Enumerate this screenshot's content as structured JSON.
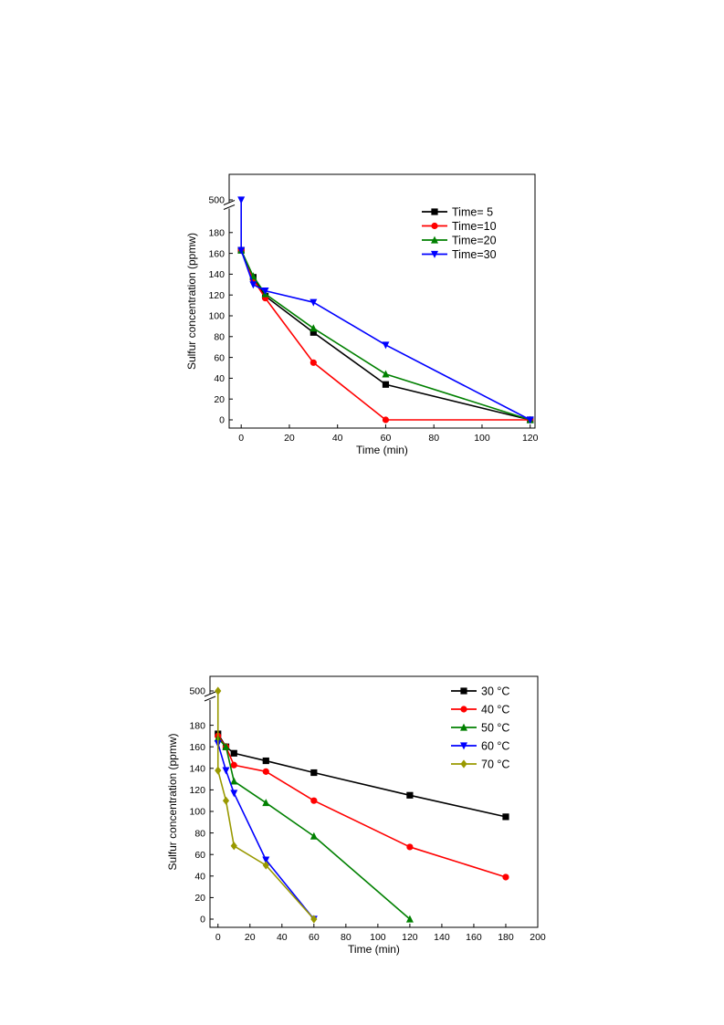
{
  "chart_data": [
    {
      "type": "line",
      "xlabel": "Time (min)",
      "ylabel": "Sulfur concentration (ppmw)",
      "xlim": [
        -5,
        122
      ],
      "ylim": [
        0,
        200
      ],
      "y_axis_break": true,
      "y_break_top_value": 500,
      "xticks": [
        "0",
        "20",
        "40",
        "60",
        "80",
        "100",
        "120"
      ],
      "yticks": [
        "0",
        "20",
        "40",
        "60",
        "80",
        "100",
        "120",
        "140",
        "160",
        "180"
      ],
      "ytick_top": "500",
      "legend_position": "top-right",
      "series": [
        {
          "name": "Time= 5",
          "color": "#000000",
          "marker": "square",
          "points": [
            [
              0,
              163
            ],
            [
              5,
              137
            ],
            [
              10,
              119
            ],
            [
              30,
              84
            ],
            [
              60,
              34
            ],
            [
              120,
              0
            ]
          ]
        },
        {
          "name": "Time=10",
          "color": "#ff0000",
          "marker": "circle",
          "points": [
            [
              0,
              163
            ],
            [
              5,
              135
            ],
            [
              10,
              117
            ],
            [
              30,
              55
            ],
            [
              60,
              0
            ],
            [
              120,
              0
            ]
          ]
        },
        {
          "name": "Time=20",
          "color": "#008000",
          "marker": "triangle-up",
          "points": [
            [
              0,
              163
            ],
            [
              5,
              138
            ],
            [
              10,
              121
            ],
            [
              30,
              88
            ],
            [
              60,
              44
            ],
            [
              120,
              0
            ]
          ]
        },
        {
          "name": "Time=30",
          "color": "#0000ff",
          "marker": "triangle-down",
          "points": [
            [
              0,
              500
            ],
            [
              0,
              163
            ],
            [
              5,
              130
            ],
            [
              10,
              124
            ],
            [
              30,
              113
            ],
            [
              60,
              72
            ],
            [
              120,
              0
            ]
          ]
        }
      ]
    },
    {
      "type": "line",
      "xlabel": "Time (min)",
      "ylabel": "Sulfur concentration (ppmw)",
      "xlim": [
        -5,
        200
      ],
      "ylim": [
        0,
        200
      ],
      "y_axis_break": true,
      "y_break_top_value": 500,
      "xticks": [
        "0",
        "20",
        "40",
        "60",
        "80",
        "100",
        "120",
        "140",
        "160",
        "180",
        "200"
      ],
      "yticks": [
        "0",
        "20",
        "40",
        "60",
        "80",
        "100",
        "120",
        "140",
        "160",
        "180"
      ],
      "ytick_top": "500",
      "legend_position": "top-right",
      "series": [
        {
          "name": "30 °C",
          "color": "#000000",
          "marker": "square",
          "points": [
            [
              0,
              172
            ],
            [
              5,
              160
            ],
            [
              10,
              154
            ],
            [
              30,
              147
            ],
            [
              60,
              136
            ],
            [
              120,
              115
            ],
            [
              180,
              95
            ]
          ]
        },
        {
          "name": "40 °C",
          "color": "#ff0000",
          "marker": "circle",
          "points": [
            [
              0,
              170
            ],
            [
              5,
              160
            ],
            [
              10,
              143
            ],
            [
              30,
              137
            ],
            [
              60,
              110
            ],
            [
              120,
              67
            ],
            [
              180,
              39
            ]
          ]
        },
        {
          "name": "50 °C",
          "color": "#008000",
          "marker": "triangle-up",
          "points": [
            [
              0,
              168
            ],
            [
              5,
              160
            ],
            [
              10,
              128
            ],
            [
              30,
              108
            ],
            [
              60,
              77
            ],
            [
              120,
              0
            ]
          ]
        },
        {
          "name": "60 °C",
          "color": "#0000ff",
          "marker": "triangle-down",
          "points": [
            [
              0,
              163
            ],
            [
              5,
              138
            ],
            [
              10,
              117
            ],
            [
              30,
              55
            ],
            [
              60,
              0
            ]
          ]
        },
        {
          "name": "70 °C",
          "color": "#999900",
          "marker": "diamond",
          "points": [
            [
              0,
              500
            ],
            [
              0,
              138
            ],
            [
              5,
              110
            ],
            [
              10,
              68
            ],
            [
              30,
              50
            ],
            [
              60,
              0
            ]
          ]
        }
      ]
    }
  ]
}
